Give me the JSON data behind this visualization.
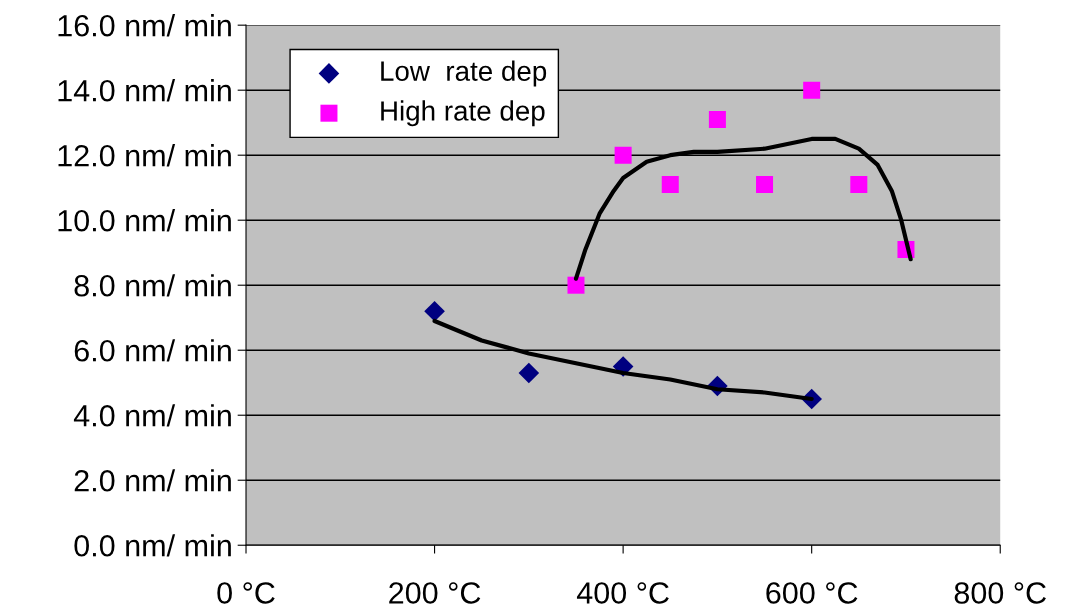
{
  "chart_data": {
    "type": "scatter",
    "xlim": [
      0,
      800
    ],
    "ylim": [
      0,
      16
    ],
    "xticks": [
      {
        "value": 0,
        "label": "0 °C"
      },
      {
        "value": 200,
        "label": "200 °C"
      },
      {
        "value": 400,
        "label": "400 °C"
      },
      {
        "value": 600,
        "label": "600 °C"
      },
      {
        "value": 800,
        "label": "800 °C"
      }
    ],
    "yticks": [
      {
        "value": 0,
        "label": "0.0 nm/ min"
      },
      {
        "value": 2,
        "label": "2.0 nm/ min"
      },
      {
        "value": 4,
        "label": "4.0 nm/ min"
      },
      {
        "value": 6,
        "label": "6.0 nm/ min"
      },
      {
        "value": 8,
        "label": "8.0 nm/ min"
      },
      {
        "value": 10,
        "label": "10.0 nm/ min"
      },
      {
        "value": 12,
        "label": "12.0 nm/ min"
      },
      {
        "value": 14,
        "label": "14.0 nm/ min"
      },
      {
        "value": 16,
        "label": "16.0 nm/ min"
      }
    ],
    "grid": "y",
    "legend": "top left",
    "series": [
      {
        "name": "Low  rate dep",
        "marker": "diamond",
        "color": "#000080",
        "x": [
          200,
          300,
          400,
          500,
          600
        ],
        "values": [
          7.2,
          5.3,
          5.5,
          4.9,
          4.5
        ]
      },
      {
        "name": "High rate dep",
        "marker": "square",
        "color": "#ff00ff",
        "x": [
          350,
          400,
          450,
          500,
          550,
          600,
          650,
          700
        ],
        "values": [
          8.0,
          12.0,
          11.1,
          13.1,
          11.1,
          14.0,
          11.1,
          9.1
        ]
      },
      {
        "type": "line",
        "color": "#000000",
        "x": [
          200,
          250,
          300,
          350,
          400,
          450,
          500,
          550,
          600
        ],
        "values": [
          6.9,
          6.3,
          5.9,
          5.6,
          5.3,
          5.1,
          4.8,
          4.7,
          4.5
        ]
      },
      {
        "type": "line",
        "color": "#000000",
        "x": [
          350,
          360,
          375,
          390,
          400,
          425,
          450,
          475,
          500,
          550,
          600,
          625,
          650,
          670,
          685,
          695,
          705
        ],
        "values": [
          8.2,
          9.1,
          10.2,
          10.9,
          11.3,
          11.8,
          12.0,
          12.1,
          12.1,
          12.2,
          12.5,
          12.5,
          12.2,
          11.7,
          10.9,
          10.0,
          8.8
        ]
      }
    ]
  }
}
